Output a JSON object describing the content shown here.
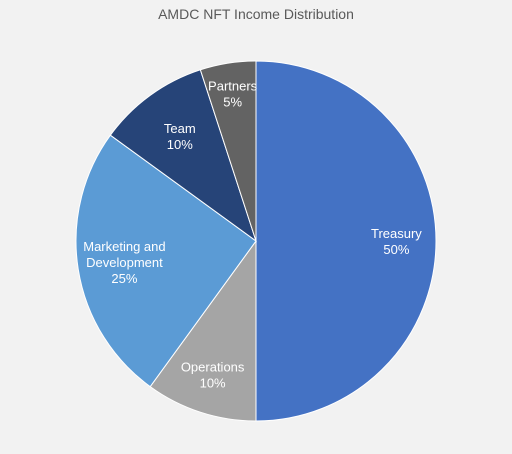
{
  "chart_data": {
    "type": "pie",
    "title": "AMDC NFT Income Distribution",
    "labels": [
      "Treasury",
      "Operations",
      "Marketing and Development",
      "Team",
      "Partners"
    ],
    "values": [
      50,
      10,
      25,
      10,
      5
    ],
    "value_labels": [
      "50%",
      "10%",
      "25%",
      "10%",
      "5%"
    ],
    "colors": [
      "#4472c4",
      "#a5a5a5",
      "#5b9bd5",
      "#264478",
      "#636363"
    ],
    "start": "12 o'clock",
    "direction": "clockwise",
    "legend": "none",
    "data_labels": "inside"
  }
}
